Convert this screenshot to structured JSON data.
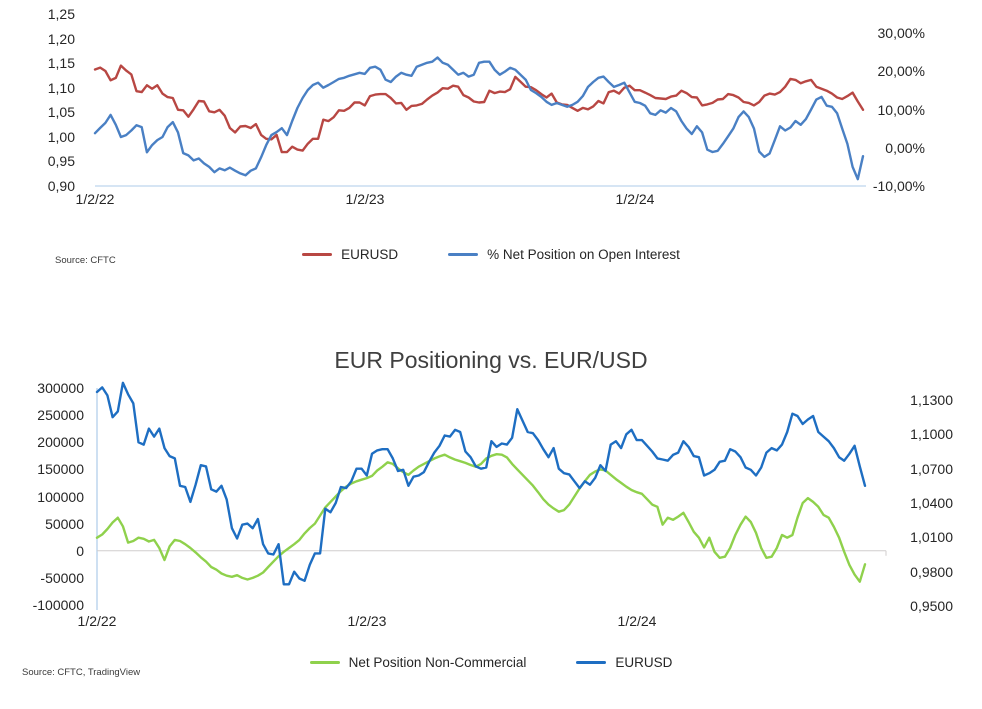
{
  "page": {
    "background": "#ffffff"
  },
  "chart_data": [
    {
      "type": "line",
      "title": "",
      "source": "Source: CFTC",
      "x_axis": {
        "tick_labels": [
          "1/2/22",
          "1/2/23",
          "1/2/24"
        ],
        "tick_weeks": [
          0,
          52,
          104
        ],
        "n_points": 149,
        "frequency": "weekly"
      },
      "left_axis": {
        "tick_labels": [
          "1,25",
          "1,20",
          "1,15",
          "1,10",
          "1,05",
          "1,00",
          "0,95",
          "0,90"
        ],
        "min": 0.9,
        "max": 1.25
      },
      "right_axis": {
        "tick_labels": [
          "30,00%",
          "20,00%",
          "10,00%",
          "0,00%",
          "-10,00%"
        ],
        "min": -10,
        "max": 30
      },
      "colors": {
        "axis_line": "#aecbe8",
        "gridline": "#d0cece",
        "tick_text": "#262626"
      },
      "legend_position": "bottom",
      "grid": "off",
      "series": [
        {
          "name": "EURUSD",
          "axis": "left",
          "color": "#b84743",
          "values": [
            1.137,
            1.141,
            1.134,
            1.115,
            1.12,
            1.145,
            1.135,
            1.127,
            1.093,
            1.091,
            1.105,
            1.098,
            1.105,
            1.088,
            1.081,
            1.079,
            1.055,
            1.054,
            1.041,
            1.056,
            1.073,
            1.072,
            1.052,
            1.05,
            1.055,
            1.043,
            1.018,
            1.009,
            1.021,
            1.022,
            1.018,
            1.026,
            1.004,
            0.996,
            0.995,
            1.004,
            0.969,
            0.969,
            0.98,
            0.974,
            0.972,
            0.986,
            0.996,
            0.996,
            1.035,
            1.032,
            1.04,
            1.054,
            1.053,
            1.059,
            1.07,
            1.07,
            1.064,
            1.083,
            1.086,
            1.087,
            1.087,
            1.079,
            1.068,
            1.069,
            1.055,
            1.063,
            1.064,
            1.067,
            1.076,
            1.084,
            1.09,
            1.099,
            1.098,
            1.104,
            1.102,
            1.085,
            1.08,
            1.072,
            1.07,
            1.071,
            1.094,
            1.089,
            1.092,
            1.091,
            1.097,
            1.122,
            1.112,
            1.102,
            1.101,
            1.095,
            1.087,
            1.08,
            1.088,
            1.07,
            1.066,
            1.065,
            1.059,
            1.053,
            1.059,
            1.056,
            1.062,
            1.073,
            1.068,
            1.091,
            1.094,
            1.088,
            1.1,
            1.104,
            1.095,
            1.095,
            1.09,
            1.085,
            1.079,
            1.078,
            1.077,
            1.082,
            1.084,
            1.094,
            1.089,
            1.081,
            1.08,
            1.064,
            1.066,
            1.069,
            1.076,
            1.077,
            1.087,
            1.085,
            1.08,
            1.071,
            1.069,
            1.064,
            1.071,
            1.084,
            1.088,
            1.086,
            1.091,
            1.102,
            1.118,
            1.116,
            1.109,
            1.113,
            1.116,
            1.102,
            1.098,
            1.094,
            1.088,
            1.08,
            1.077,
            1.083,
            1.09,
            1.072,
            1.055
          ]
        },
        {
          "name": "% Net Position on Open Interest",
          "axis": "right",
          "color": "#4a80c4",
          "values": [
            3.8,
            5.2,
            6.5,
            8.6,
            6.0,
            2.8,
            3.3,
            4.5,
            5.9,
            5.4,
            -1.2,
            0.7,
            2.0,
            2.8,
            5.4,
            6.7,
            4.0,
            -1.4,
            -2.0,
            -3.3,
            -2.8,
            -4.1,
            -5.0,
            -6.4,
            -5.4,
            -5.9,
            -5.2,
            -6.0,
            -6.7,
            -7.2,
            -6.0,
            -5.4,
            -2.5,
            0.7,
            3.3,
            4.1,
            5.1,
            3.3,
            7.0,
            10.4,
            13.0,
            15.1,
            16.4,
            17.0,
            15.7,
            16.4,
            17.2,
            18.0,
            18.3,
            18.8,
            19.2,
            19.6,
            19.3,
            20.9,
            21.2,
            20.4,
            17.8,
            17.2,
            18.6,
            19.6,
            19.1,
            18.8,
            21.2,
            21.7,
            22.2,
            22.5,
            23.6,
            22.2,
            21.7,
            20.4,
            19.1,
            19.6,
            18.6,
            19.1,
            22.2,
            22.5,
            22.5,
            20.4,
            19.1,
            19.9,
            20.9,
            20.4,
            19.1,
            17.8,
            15.1,
            14.3,
            13.3,
            12.0,
            11.2,
            11.7,
            11.2,
            10.7,
            11.2,
            12.0,
            13.5,
            15.9,
            17.2,
            18.3,
            18.6,
            17.2,
            15.9,
            16.4,
            17.0,
            14.5,
            12.0,
            11.7,
            11.0,
            9.0,
            8.6,
            9.8,
            9.2,
            10.4,
            9.5,
            7.0,
            5.0,
            3.6,
            5.6,
            4.0,
            -0.5,
            -1.1,
            -0.8,
            1.0,
            3.0,
            5.0,
            8.0,
            9.5,
            8.0,
            5.0,
            -1.0,
            -2.4,
            -1.5,
            2.0,
            5.6,
            4.5,
            5.3,
            7.0,
            6.0,
            7.5,
            10.0,
            12.6,
            13.3,
            11.0,
            10.7,
            9.0,
            5.0,
            1.0,
            -5.0,
            -8.2,
            -2.2
          ]
        }
      ]
    },
    {
      "type": "line",
      "title": "EUR Positioning vs. EUR/USD",
      "source": "Source: CFTC, TradingView",
      "x_axis": {
        "tick_labels": [
          "1/2/22",
          "1/2/23",
          "1/2/24"
        ],
        "tick_weeks": [
          0,
          52,
          104
        ],
        "n_points": 149,
        "frequency": "weekly"
      },
      "left_axis": {
        "tick_labels": [
          "300000",
          "250000",
          "200000",
          "150000",
          "100000",
          "50000",
          "0",
          "-50000",
          "-100000"
        ],
        "min": -100000,
        "max": 300000
      },
      "right_axis": {
        "tick_labels": [
          "1,1300",
          "1,1000",
          "1,0700",
          "1,0400",
          "1,0100",
          "0,9800",
          "0,9500"
        ],
        "min": 0.95,
        "max": 1.13
      },
      "colors": {
        "axis_line": "#aecbe8",
        "gridline": "#d0cece",
        "tick_text": "#262626"
      },
      "legend_position": "bottom",
      "grid": "zero-line-only",
      "series": [
        {
          "name": "Net Position Non-Commercial",
          "axis": "left",
          "color": "#8fd14c",
          "values": [
            24000,
            30000,
            40000,
            52000,
            61000,
            45000,
            15000,
            18000,
            24000,
            22000,
            17000,
            20000,
            5000,
            -17000,
            8000,
            20000,
            18000,
            12000,
            5000,
            -3000,
            -12000,
            -20000,
            -30000,
            -35000,
            -42000,
            -46000,
            -48000,
            -45000,
            -50000,
            -53000,
            -50000,
            -46000,
            -40000,
            -30000,
            -20000,
            -10000,
            -2000,
            5000,
            12000,
            20000,
            32000,
            42000,
            50000,
            65000,
            80000,
            90000,
            100000,
            110000,
            118000,
            124000,
            128000,
            131000,
            134000,
            138000,
            148000,
            155000,
            163000,
            160000,
            152000,
            145000,
            140000,
            148000,
            155000,
            160000,
            165000,
            170000,
            174000,
            177000,
            172000,
            168000,
            165000,
            162000,
            158000,
            155000,
            160000,
            170000,
            175000,
            178000,
            177000,
            172000,
            160000,
            150000,
            140000,
            130000,
            120000,
            108000,
            95000,
            85000,
            78000,
            72000,
            75000,
            85000,
            100000,
            115000,
            128000,
            140000,
            146000,
            150000,
            148000,
            140000,
            132000,
            125000,
            118000,
            112000,
            108000,
            105000,
            95000,
            85000,
            81000,
            48000,
            61000,
            57000,
            63000,
            70000,
            53000,
            35000,
            24000,
            6000,
            24000,
            -2000,
            -13000,
            -11000,
            5000,
            29000,
            48000,
            63000,
            53000,
            33000,
            5000,
            -13000,
            -11000,
            5000,
            29000,
            24000,
            29000,
            61000,
            88000,
            97000,
            90000,
            81000,
            66000,
            61000,
            44000,
            24000,
            -2000,
            -26000,
            -44000,
            -57000,
            -25000
          ]
        },
        {
          "name": "EURUSD",
          "axis": "right",
          "color": "#1e6ec2",
          "values": [
            1.137,
            1.141,
            1.134,
            1.115,
            1.12,
            1.145,
            1.135,
            1.127,
            1.093,
            1.091,
            1.105,
            1.098,
            1.105,
            1.088,
            1.081,
            1.079,
            1.055,
            1.054,
            1.041,
            1.056,
            1.073,
            1.072,
            1.052,
            1.05,
            1.055,
            1.043,
            1.018,
            1.009,
            1.021,
            1.022,
            1.018,
            1.026,
            1.004,
            0.996,
            0.995,
            1.004,
            0.969,
            0.969,
            0.98,
            0.974,
            0.972,
            0.986,
            0.996,
            0.996,
            1.035,
            1.032,
            1.04,
            1.054,
            1.053,
            1.059,
            1.07,
            1.07,
            1.064,
            1.083,
            1.086,
            1.087,
            1.087,
            1.079,
            1.068,
            1.069,
            1.055,
            1.063,
            1.064,
            1.067,
            1.076,
            1.084,
            1.09,
            1.099,
            1.098,
            1.104,
            1.102,
            1.085,
            1.08,
            1.072,
            1.07,
            1.071,
            1.094,
            1.089,
            1.092,
            1.091,
            1.097,
            1.122,
            1.112,
            1.102,
            1.101,
            1.095,
            1.087,
            1.08,
            1.088,
            1.07,
            1.066,
            1.065,
            1.059,
            1.053,
            1.059,
            1.056,
            1.062,
            1.073,
            1.068,
            1.091,
            1.094,
            1.088,
            1.1,
            1.104,
            1.095,
            1.095,
            1.09,
            1.085,
            1.079,
            1.078,
            1.077,
            1.082,
            1.084,
            1.094,
            1.089,
            1.081,
            1.08,
            1.064,
            1.066,
            1.069,
            1.076,
            1.077,
            1.087,
            1.085,
            1.08,
            1.071,
            1.069,
            1.064,
            1.071,
            1.084,
            1.088,
            1.086,
            1.091,
            1.102,
            1.118,
            1.116,
            1.109,
            1.113,
            1.116,
            1.102,
            1.098,
            1.094,
            1.088,
            1.08,
            1.077,
            1.083,
            1.09,
            1.072,
            1.055
          ]
        }
      ]
    }
  ]
}
